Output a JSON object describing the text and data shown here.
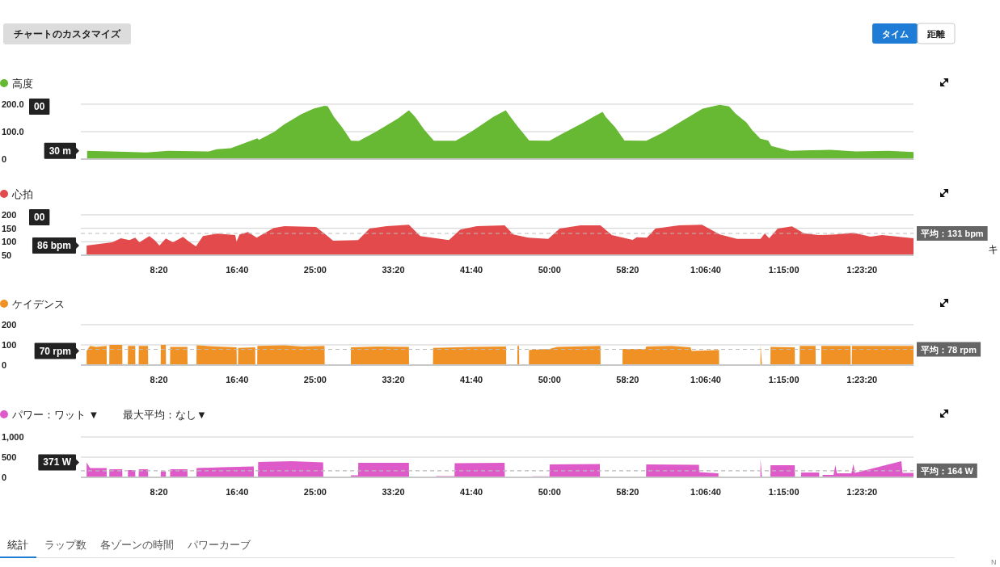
{
  "chart_data": [
    {
      "type": "area",
      "title": "高度",
      "color": "#67b832",
      "xlim": [
        0,
        5330
      ],
      "ylim": [
        0,
        200
      ],
      "yticks": [
        0,
        {
          "value": 100,
          "label": "100.0"
        },
        {
          "value": 200,
          "label": "200.0"
        }
      ],
      "tick_labels": "y",
      "grid": "y",
      "x": [
        40,
        240,
        420,
        560,
        820,
        870,
        960,
        1130,
        1140,
        1240,
        1300,
        1410,
        1490,
        1560,
        1580,
        1620,
        1670,
        1730,
        1780,
        1890,
        2030,
        2100,
        2140,
        2200,
        2260,
        2400,
        2500,
        2640,
        2720,
        2750,
        2800,
        2870,
        3000,
        3080,
        3220,
        3280,
        3340,
        3360,
        3420,
        3480,
        3620,
        3720,
        3870,
        3980,
        4090,
        4150,
        4190,
        4260,
        4300,
        4350,
        4400,
        4420,
        4500,
        4540,
        4670,
        4800,
        4960,
        5170,
        5330
      ],
      "values": [
        30,
        27,
        24,
        30,
        28,
        36,
        40,
        76,
        70,
        100,
        126,
        163,
        184,
        194,
        193,
        154,
        118,
        67,
        66,
        100,
        148,
        178,
        154,
        106,
        67,
        67,
        100,
        154,
        178,
        154,
        116,
        68,
        67,
        92,
        134,
        154,
        172,
        154,
        116,
        68,
        67,
        95,
        146,
        184,
        198,
        192,
        166,
        134,
        104,
        74,
        68,
        48,
        36,
        30,
        32,
        34,
        28,
        30,
        26
      ],
      "annotations": [
        "00",
        "30 m"
      ]
    },
    {
      "type": "area",
      "title": "心拍",
      "color": "#e34a4b",
      "xlim": [
        0,
        5330
      ],
      "ylim": [
        50,
        200
      ],
      "yticks": [
        50,
        100,
        150,
        200
      ],
      "xticks": [
        {
          "value": 500,
          "label": "8:20"
        },
        {
          "value": 1000,
          "label": "16:40"
        },
        {
          "value": 1500,
          "label": "25:00"
        },
        {
          "value": 2000,
          "label": "33:20"
        },
        {
          "value": 2500,
          "label": "41:40"
        },
        {
          "value": 3000,
          "label": "50:00"
        },
        {
          "value": 3500,
          "label": "58:20"
        },
        {
          "value": 4000,
          "label": "1:06:40"
        },
        {
          "value": 4500,
          "label": "1:15:00"
        },
        {
          "value": 5000,
          "label": "1:23:20"
        }
      ],
      "grid": "y",
      "x": [
        37,
        201,
        256,
        311,
        348,
        375,
        439,
        476,
        503,
        544,
        590,
        654,
        691,
        737,
        782,
        874,
        988,
        997,
        1016,
        1071,
        1125,
        1235,
        1304,
        1505,
        1560,
        1615,
        1775,
        1848,
        1958,
        2100,
        2173,
        2356,
        2429,
        2535,
        2713,
        2768,
        2864,
        2992,
        3065,
        3198,
        3326,
        3399,
        3532,
        3559,
        3623,
        3678,
        3829,
        3976,
        4090,
        4200,
        4351,
        4378,
        4406,
        4461,
        4552,
        4630,
        4721,
        4831,
        4946,
        5055,
        5129,
        5330
      ],
      "values": [
        86,
        98,
        113,
        106,
        115,
        98,
        121,
        104,
        86,
        112,
        98,
        118,
        101,
        83,
        121,
        130,
        125,
        101,
        127,
        136,
        115,
        151,
        158,
        155,
        130,
        104,
        106,
        149,
        158,
        163,
        121,
        106,
        145,
        158,
        161,
        127,
        115,
        111,
        149,
        161,
        161,
        125,
        107,
        117,
        115,
        149,
        161,
        163,
        127,
        111,
        111,
        131,
        113,
        149,
        157,
        131,
        125,
        127,
        133,
        119,
        125,
        113
      ],
      "ref_lines": [
        {
          "axis": "y",
          "value": 131,
          "label": "平均：131 bpm",
          "color": "#bbbbbb",
          "line_style": "dashed"
        }
      ],
      "annotations": [
        "00",
        "86 bpm"
      ]
    },
    {
      "type": "area",
      "title": "ケイデンス",
      "color": "#ef9125",
      "xlim": [
        0,
        5330
      ],
      "ylim": [
        0,
        200
      ],
      "yticks": [
        0,
        100,
        200
      ],
      "xticks": [
        {
          "value": 500,
          "label": "8:20"
        },
        {
          "value": 1000,
          "label": "16:40"
        },
        {
          "value": 1500,
          "label": "25:00"
        },
        {
          "value": 2000,
          "label": "33:20"
        },
        {
          "value": 2500,
          "label": "41:40"
        },
        {
          "value": 3000,
          "label": "50:00"
        },
        {
          "value": 3500,
          "label": "58:20"
        },
        {
          "value": 4000,
          "label": "1:06:40"
        },
        {
          "value": 4500,
          "label": "1:15:00"
        },
        {
          "value": 5000,
          "label": "1:23:20"
        }
      ],
      "grid": "y",
      "x": [
        37,
        59,
        100,
        165,
        166,
        182,
        183,
        265,
        266,
        301,
        302,
        348,
        349,
        370,
        371,
        430,
        431,
        511,
        512,
        544,
        545,
        571,
        572,
        682,
        683,
        740,
        741,
        870,
        997,
        998,
        1006,
        1007,
        1116,
        1117,
        1129,
        1130,
        1300,
        1420,
        1560,
        1561,
        1728,
        1729,
        1900,
        2100,
        2101,
        2254,
        2255,
        2500,
        2722,
        2723,
        2794,
        2795,
        2805,
        2806,
        2868,
        2869,
        3000,
        3050,
        3326,
        3327,
        3467,
        3468,
        3614,
        3619,
        3780,
        3903,
        3910,
        4085,
        4086,
        4350,
        4351,
        4360,
        4414,
        4415,
        4570,
        4571,
        4601,
        4602,
        4703,
        4704,
        4739,
        4740,
        4927,
        4928,
        4935,
        4936,
        5330
      ],
      "values": [
        70,
        95,
        90,
        95,
        0,
        0,
        100,
        100,
        0,
        0,
        95,
        95,
        0,
        0,
        95,
        95,
        0,
        0,
        100,
        100,
        0,
        0,
        90,
        90,
        0,
        0,
        98,
        92,
        88,
        0,
        0,
        85,
        88,
        0,
        0,
        95,
        98,
        92,
        95,
        0,
        0,
        88,
        92,
        90,
        0,
        0,
        85,
        90,
        92,
        0,
        0,
        95,
        95,
        0,
        0,
        75,
        80,
        90,
        95,
        0,
        0,
        80,
        80,
        92,
        95,
        88,
        70,
        75,
        0,
        0,
        100,
        0,
        0,
        90,
        88,
        0,
        0,
        95,
        95,
        0,
        0,
        95,
        95,
        0,
        0,
        95,
        95
      ],
      "ref_lines": [
        {
          "axis": "y",
          "value": 78,
          "label": "平均：78 rpm",
          "color": "#bbbbbb",
          "line_style": "dashed"
        }
      ],
      "annotations": [
        "70 rpm"
      ]
    },
    {
      "type": "area",
      "title": "パワー：ワット ▼",
      "subtitle": "最大平均：なし▼",
      "color": "#dd5ac8",
      "xlim": [
        0,
        5330
      ],
      "ylim": [
        0,
        1000
      ],
      "yticks": [
        0,
        500,
        {
          "value": 1000,
          "label": "1,000"
        }
      ],
      "xticks": [
        {
          "value": 500,
          "label": "8:20"
        },
        {
          "value": 1000,
          "label": "16:40"
        },
        {
          "value": 1500,
          "label": "25:00"
        },
        {
          "value": 2000,
          "label": "33:20"
        },
        {
          "value": 2500,
          "label": "41:40"
        },
        {
          "value": 3000,
          "label": "50:00"
        },
        {
          "value": 3500,
          "label": "58:20"
        },
        {
          "value": 4000,
          "label": "1:06:40"
        },
        {
          "value": 4500,
          "label": "1:15:00"
        },
        {
          "value": 5000,
          "label": "1:23:20"
        }
      ],
      "grid": "y",
      "x": [
        37,
        59,
        165,
        166,
        182,
        183,
        265,
        266,
        301,
        302,
        348,
        349,
        370,
        371,
        430,
        431,
        511,
        512,
        544,
        545,
        571,
        572,
        682,
        683,
        740,
        741,
        900,
        1107,
        1108,
        1134,
        1135,
        1350,
        1551,
        1552,
        1728,
        1729,
        1775,
        1776,
        2100,
        2101,
        2273,
        2274,
        2392,
        2393,
        2713,
        2714,
        2890,
        2891,
        3000,
        3001,
        3322,
        3323,
        3618,
        3619,
        3957,
        3958,
        4081,
        4082,
        4350,
        4351,
        4360,
        4414,
        4415,
        4570,
        4571,
        4610,
        4611,
        4726,
        4727,
        4748,
        4749,
        4818,
        4830,
        4840,
        4932,
        4946,
        4955,
        5252,
        5260,
        5330
      ],
      "values": [
        371,
        230,
        230,
        0,
        0,
        200,
        200,
        0,
        0,
        180,
        180,
        0,
        0,
        200,
        200,
        0,
        0,
        150,
        150,
        0,
        0,
        200,
        200,
        0,
        0,
        230,
        250,
        270,
        0,
        0,
        380,
        400,
        370,
        0,
        0,
        50,
        50,
        360,
        360,
        0,
        0,
        30,
        30,
        350,
        360,
        0,
        0,
        25,
        25,
        320,
        330,
        0,
        0,
        320,
        310,
        130,
        100,
        0,
        0,
        450,
        0,
        0,
        300,
        300,
        0,
        0,
        120,
        120,
        0,
        0,
        60,
        60,
        300,
        100,
        100,
        330,
        110,
        400,
        110,
        110
      ],
      "ref_lines": [
        {
          "axis": "y",
          "value": 164,
          "label": "平均：164 W",
          "color": "#bbbbbb",
          "line_style": "dashed"
        }
      ],
      "annotations": [
        "371 W"
      ]
    },
    {
      "type": "other",
      "annotations": [
        "チャートのカスタマイズ",
        "タイム",
        "距離",
        "統計",
        "ラップ数",
        "各ゾーンの時間",
        "パワーカーブ",
        "キ",
        "N"
      ]
    }
  ]
}
